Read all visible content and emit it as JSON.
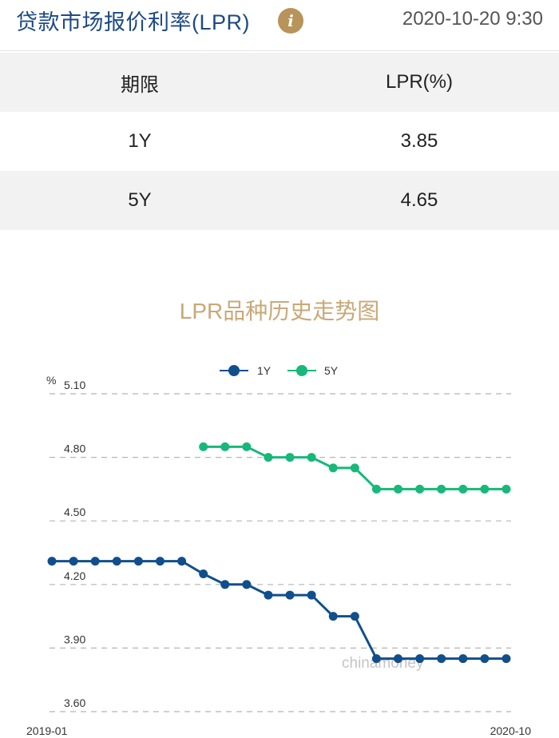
{
  "header": {
    "title": "贷款市场报价利率(LPR)",
    "info_icon": "info-icon",
    "datetime": "2020-10-20 9:30",
    "accent_color": "#b8935a",
    "title_color": "#1d4a84"
  },
  "table": {
    "columns": [
      "期限",
      "LPR(%)"
    ],
    "rows": [
      {
        "term": "1Y",
        "rate": "3.85"
      },
      {
        "term": "5Y",
        "rate": "4.65"
      }
    ]
  },
  "chart_data": {
    "type": "line",
    "title": "LPR品种历史走势图",
    "ylabel": "%",
    "ylim": [
      3.6,
      5.1
    ],
    "yticks": [
      "5.10",
      "4.80",
      "4.50",
      "4.20",
      "3.90",
      "3.60"
    ],
    "x_start_label": "2019-01",
    "x_end_label": "2020-10",
    "grid": true,
    "legend_position": "top-center",
    "watermark": "chinamoney",
    "x": [
      "2019-01",
      "2019-02",
      "2019-03",
      "2019-04",
      "2019-05",
      "2019-06",
      "2019-07",
      "2019-08",
      "2019-09",
      "2019-10",
      "2019-11",
      "2019-12",
      "2020-01",
      "2020-02",
      "2020-03",
      "2020-04",
      "2020-05",
      "2020-06",
      "2020-07",
      "2020-08",
      "2020-09",
      "2020-10"
    ],
    "series": [
      {
        "name": "1Y",
        "color": "#104f8c",
        "values": [
          4.31,
          4.31,
          4.31,
          4.31,
          4.31,
          4.31,
          4.31,
          4.25,
          4.2,
          4.2,
          4.15,
          4.15,
          4.15,
          4.05,
          4.05,
          3.85,
          3.85,
          3.85,
          3.85,
          3.85,
          3.85,
          3.85
        ]
      },
      {
        "name": "5Y",
        "color": "#17b87a",
        "values": [
          null,
          null,
          null,
          null,
          null,
          null,
          null,
          4.85,
          4.85,
          4.85,
          4.8,
          4.8,
          4.8,
          4.75,
          4.75,
          4.65,
          4.65,
          4.65,
          4.65,
          4.65,
          4.65,
          4.65
        ]
      }
    ]
  }
}
